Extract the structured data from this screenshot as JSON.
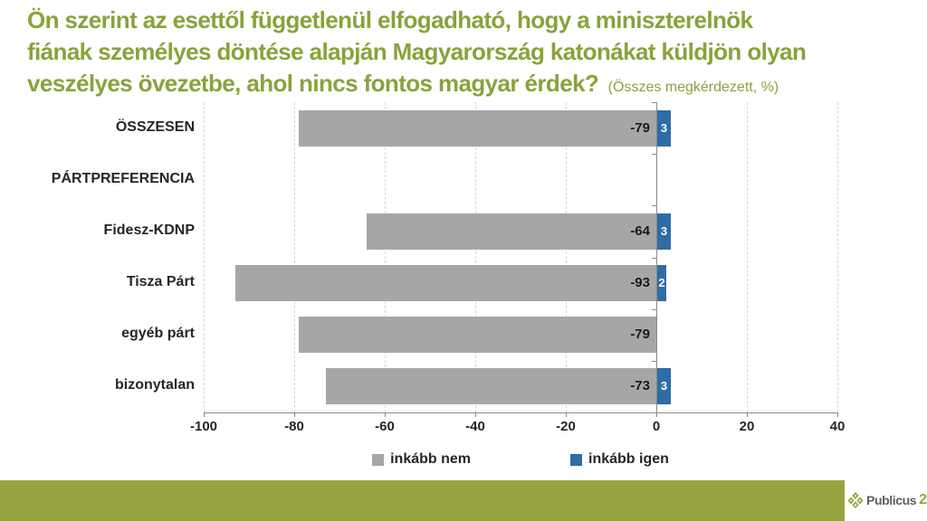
{
  "title": {
    "lines": [
      "Ön szerint az esettől függetlenül elfogadható, hogy a miniszterelnök",
      "fiának személyes döntése alapján Magyarország katonákat küldjön olyan",
      "veszélyes övezetbe, ahol nincs fontos magyar érdek?"
    ],
    "suffix": "(Összes megkérdezett, %)",
    "color": "#8aa23b"
  },
  "chart_data": {
    "type": "bar",
    "orientation": "horizontal",
    "categories": [
      "ÖSSZESEN",
      "PÁRTPREFERENCIA",
      "Fidesz-KDNP",
      "Tisza Párt",
      "egyéb párt",
      "bizonytalan"
    ],
    "series": [
      {
        "name": "inkább nem",
        "color": "#a6a6a6",
        "values": [
          -79,
          null,
          -64,
          -93,
          -79,
          -73
        ]
      },
      {
        "name": "inkább igen",
        "color": "#2e6da4",
        "values": [
          3,
          null,
          3,
          2,
          0,
          3
        ]
      }
    ],
    "xlim": [
      -100,
      40
    ],
    "xticks": [
      -100,
      -80,
      -60,
      -40,
      -20,
      0,
      20,
      40
    ],
    "grid": "dashed-vertical-gridlines",
    "legend_position": "bottom",
    "bar_label_color_nem": "#1a1a1a",
    "bar_label_color_igen": "#ffffff"
  },
  "footer": {
    "bar_color": "#96a33e",
    "brand": "Publicus",
    "brand_number": "2",
    "brand_number_zero": "0",
    "brand_text_color": "#595e62",
    "brand_green": "#8fa63c"
  }
}
